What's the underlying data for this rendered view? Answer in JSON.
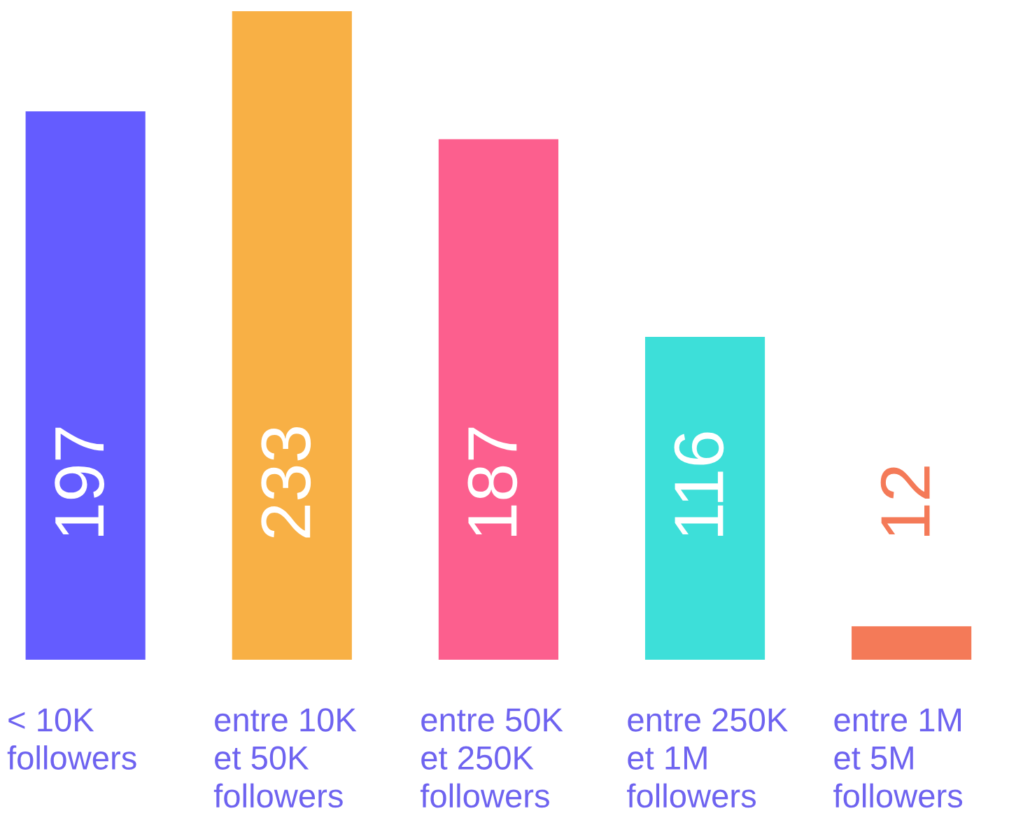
{
  "chart_data": {
    "type": "bar",
    "categories": [
      "< 10K\nfollowers",
      "entre 10K\net 50K\nfollowers",
      "entre 50K\net 250K\nfollowers",
      "entre 250K\net 1M\nfollowers",
      "entre 1M\net 5M\nfollowers"
    ],
    "values": [
      197,
      233,
      187,
      116,
      12
    ],
    "colors": [
      "#645cff",
      "#f8b045",
      "#fc5f8e",
      "#3ddfd9",
      "#f47a58"
    ],
    "data_labels": true
  }
}
